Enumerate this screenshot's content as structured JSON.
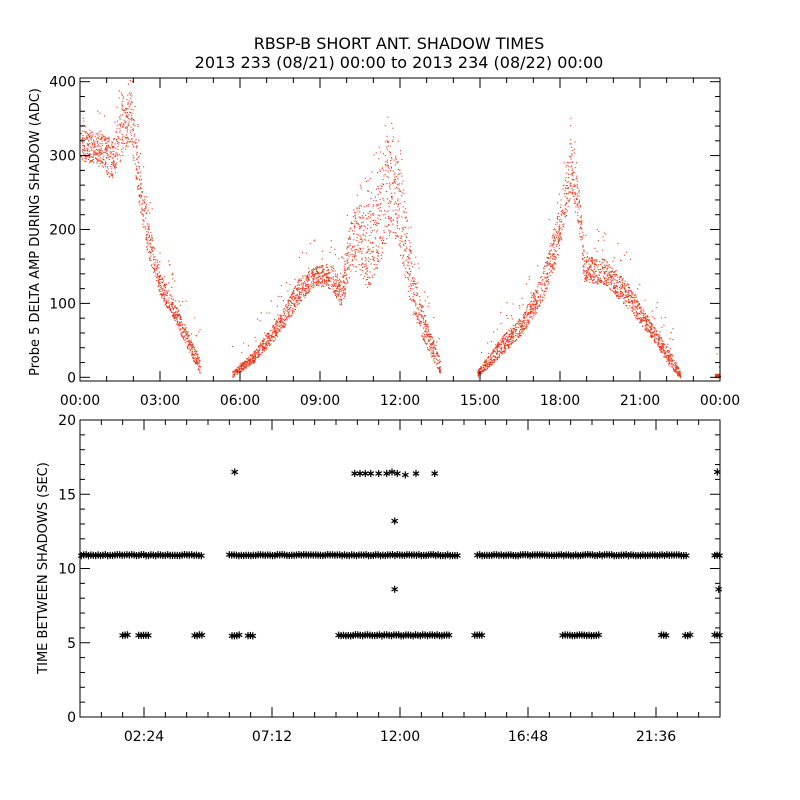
{
  "figure": {
    "title": "RBSP-B SHORT ANT. SHADOW TIMES",
    "subtitle": "2013 233 (08/21) 00:00 to 2013 234 (08/22) 00:00"
  },
  "chart_data": [
    {
      "type": "scatter",
      "ylabel": "Probe 5 DELTA AMP DURING SHADOW (ADC)",
      "xlabel": "",
      "x_unit": "hours",
      "xlim": [
        0,
        24
      ],
      "ylim": [
        -5,
        405
      ],
      "x_ticks": [
        0,
        3,
        6,
        9,
        12,
        15,
        18,
        21,
        24
      ],
      "x_tick_labels": [
        "00:00",
        "03:00",
        "06:00",
        "09:00",
        "12:00",
        "15:00",
        "18:00",
        "21:00",
        "00:00"
      ],
      "y_ticks": [
        0,
        100,
        200,
        300,
        400
      ],
      "y_tick_labels": [
        "0",
        "100",
        "200",
        "300",
        "400"
      ],
      "marker": "dot",
      "color": "#e8371a",
      "grid": false,
      "envelope": [
        {
          "segment": 1,
          "points": [
            [
              0.0,
              295,
              335
            ],
            [
              0.8,
              285,
              330
            ],
            [
              1.2,
              265,
              320
            ],
            [
              1.6,
              300,
              380
            ],
            [
              1.9,
              320,
              390
            ],
            [
              2.2,
              235,
              290
            ],
            [
              2.5,
              170,
              220
            ],
            [
              3.0,
              110,
              140
            ],
            [
              3.5,
              80,
              105
            ],
            [
              4.0,
              40,
              65
            ],
            [
              4.5,
              5,
              25
            ]
          ]
        },
        {
          "segment": 2,
          "points": [
            [
              5.7,
              0,
              8
            ],
            [
              6.5,
              20,
              35
            ],
            [
              7.5,
              60,
              85
            ],
            [
              8.2,
              100,
              135
            ],
            [
              8.8,
              125,
              150
            ],
            [
              9.4,
              120,
              155
            ],
            [
              9.8,
              95,
              130
            ],
            [
              10.2,
              150,
              230
            ],
            [
              10.8,
              120,
              240
            ],
            [
              11.3,
              160,
              300
            ],
            [
              11.7,
              200,
              340
            ],
            [
              12.1,
              150,
              260
            ],
            [
              12.5,
              80,
              140
            ],
            [
              13.0,
              40,
              75
            ],
            [
              13.5,
              5,
              25
            ]
          ]
        },
        {
          "segment": 3,
          "points": [
            [
              14.9,
              0,
              10
            ],
            [
              15.8,
              30,
              55
            ],
            [
              16.6,
              60,
              85
            ],
            [
              17.3,
              100,
              140
            ],
            [
              17.9,
              160,
              220
            ],
            [
              18.4,
              250,
              320
            ],
            [
              18.7,
              200,
              260
            ],
            [
              18.9,
              130,
              165
            ],
            [
              19.7,
              125,
              160
            ],
            [
              20.5,
              95,
              130
            ],
            [
              21.4,
              55,
              75
            ],
            [
              22.2,
              10,
              30
            ],
            [
              22.5,
              0,
              8
            ]
          ]
        },
        {
          "segment": 4,
          "points": [
            [
              23.8,
              0,
              5
            ],
            [
              24.0,
              0,
              5
            ]
          ]
        }
      ]
    },
    {
      "type": "scatter",
      "ylabel": "TIME BETWEEN SHADOWS (SEC)",
      "xlabel": "",
      "x_unit": "hours",
      "xlim": [
        0,
        24
      ],
      "ylim": [
        0,
        20
      ],
      "x_ticks": [
        2.4,
        7.2,
        12.0,
        16.8,
        21.6
      ],
      "x_tick_labels": [
        "02:24",
        "07:12",
        "12:00",
        "16:48",
        "21:36"
      ],
      "y_ticks": [
        0,
        5,
        10,
        15,
        20
      ],
      "y_tick_labels": [
        "0",
        "5",
        "10",
        "15",
        "20"
      ],
      "marker": "asterisk",
      "color": "#000000",
      "grid": false,
      "bands": [
        {
          "y": 10.9,
          "x_ranges": [
            [
              0.05,
              4.6
            ],
            [
              5.6,
              14.2
            ],
            [
              14.9,
              22.8
            ],
            [
              23.8,
              24.0
            ]
          ]
        },
        {
          "y": 5.5,
          "x_ranges": [
            [
              1.6,
              1.8
            ],
            [
              2.2,
              2.6
            ],
            [
              4.3,
              4.6
            ],
            [
              5.7,
              6.0
            ],
            [
              6.3,
              6.5
            ],
            [
              9.7,
              13.9
            ],
            [
              14.8,
              15.1
            ],
            [
              18.1,
              19.5
            ],
            [
              21.8,
              22.0
            ],
            [
              22.7,
              22.9
            ],
            [
              23.8,
              24.0
            ]
          ]
        }
      ],
      "points": [
        {
          "x": 5.8,
          "y": 16.5
        },
        {
          "x": 10.3,
          "y": 16.4
        },
        {
          "x": 10.5,
          "y": 16.4
        },
        {
          "x": 10.7,
          "y": 16.4
        },
        {
          "x": 10.9,
          "y": 16.4
        },
        {
          "x": 11.2,
          "y": 16.4
        },
        {
          "x": 11.5,
          "y": 16.4
        },
        {
          "x": 11.7,
          "y": 16.5
        },
        {
          "x": 11.9,
          "y": 16.4
        },
        {
          "x": 12.2,
          "y": 16.3
        },
        {
          "x": 12.6,
          "y": 16.4
        },
        {
          "x": 13.3,
          "y": 16.4
        },
        {
          "x": 11.8,
          "y": 13.2
        },
        {
          "x": 11.8,
          "y": 8.6
        },
        {
          "x": 23.9,
          "y": 16.5
        },
        {
          "x": 23.95,
          "y": 8.6
        }
      ]
    }
  ]
}
